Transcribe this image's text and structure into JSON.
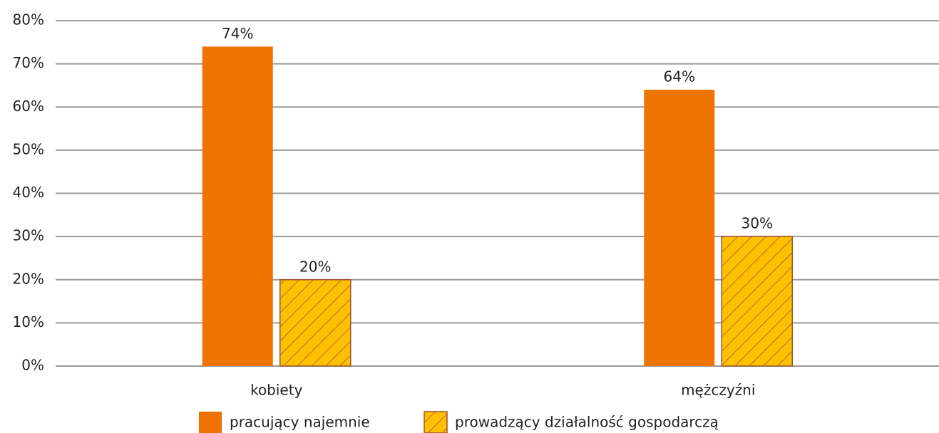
{
  "chart_data": {
    "type": "bar",
    "categories": [
      "kobiety",
      "mężczyźni"
    ],
    "series": [
      {
        "name": "pracujący najemnie",
        "color": "#ef7300",
        "values": [
          74,
          64
        ],
        "value_labels": [
          "74%",
          "64%"
        ]
      },
      {
        "name": "prowadzący działalność gospodarczą",
        "color": "#ffc000",
        "pattern": "hatch",
        "pattern_color": "#a0522d",
        "values": [
          20,
          30
        ],
        "value_labels": [
          "20%",
          "30%"
        ]
      }
    ],
    "ylim": [
      0,
      80
    ],
    "yticks": [
      {
        "value": 0,
        "label": "0%"
      },
      {
        "value": 10,
        "label": "10%"
      },
      {
        "value": 20,
        "label": "20%"
      },
      {
        "value": 30,
        "label": "30%"
      },
      {
        "value": 40,
        "label": "40%"
      },
      {
        "value": 50,
        "label": "50%"
      },
      {
        "value": 60,
        "label": "60%"
      },
      {
        "value": 70,
        "label": "70%"
      },
      {
        "value": 80,
        "label": "80%"
      }
    ],
    "grid": true,
    "legend": "bottom"
  }
}
